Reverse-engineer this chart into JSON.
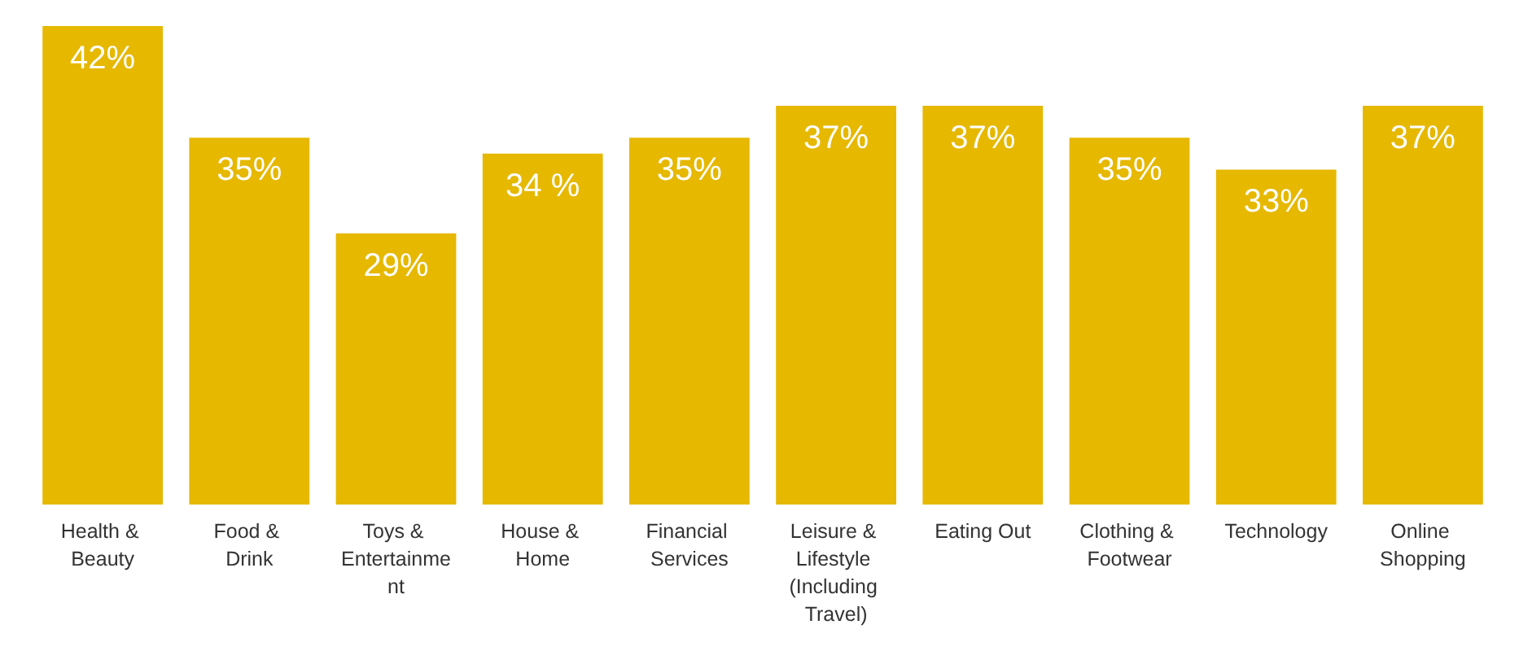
{
  "chart_data": {
    "type": "bar",
    "categories": [
      "Health & Beauty",
      "Food & Drink",
      "Toys & Entertainment",
      "House & Home",
      "Financial Services",
      "Leisure & Lifestyle (Including Travel)",
      "Eating Out",
      "Clothing & Footwear",
      "Technology",
      "Online Shopping"
    ],
    "values": [
      42,
      35,
      29,
      34,
      35,
      37,
      37,
      35,
      33,
      37
    ],
    "value_labels": [
      "42%",
      "35%",
      "29%",
      "34 %",
      "35%",
      "37%",
      "37%",
      "35%",
      "33%",
      "37%"
    ],
    "color": "#e6b800",
    "ylim": [
      12,
      42
    ],
    "tick_labels": "x"
  }
}
